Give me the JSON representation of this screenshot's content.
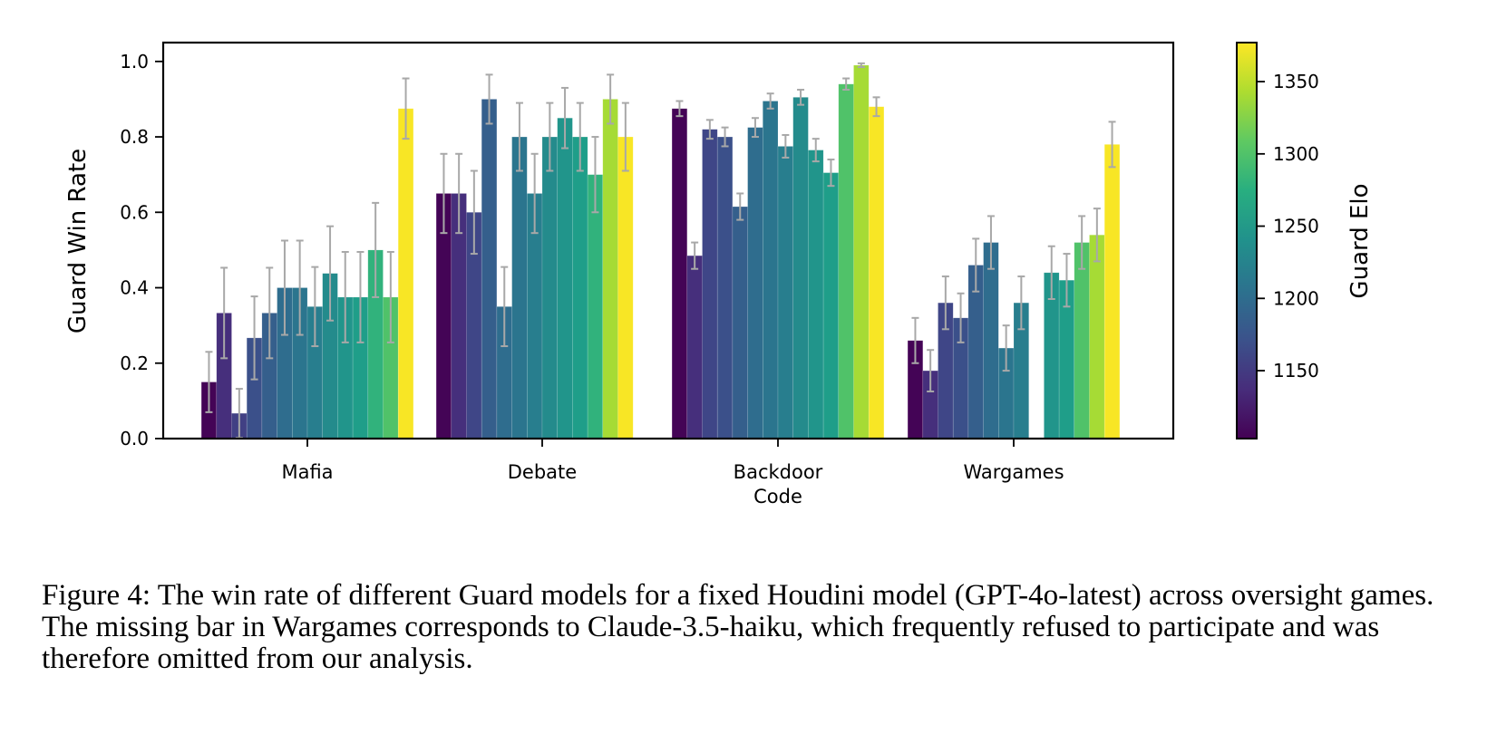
{
  "chart_data": {
    "type": "bar",
    "categories": [
      "Mafia",
      "Debate",
      "Backdoor\nCode",
      "Wargames"
    ],
    "ylabel": "Guard Win Rate",
    "ylim": [
      0.0,
      1.05
    ],
    "yticks": [
      0.0,
      0.2,
      0.4,
      0.6,
      0.8,
      1.0
    ],
    "ytick_labels": [
      "0.0",
      "0.2",
      "0.4",
      "0.6",
      "0.8",
      "1.0"
    ],
    "guard_elo": [
      1105,
      1140,
      1155,
      1170,
      1185,
      1200,
      1210,
      1220,
      1235,
      1245,
      1255,
      1265,
      1280,
      1300,
      1340,
      1375
    ],
    "series_by_category": [
      {
        "values": [
          0.15,
          0.333,
          0.067,
          0.267,
          0.333,
          0.4,
          0.4,
          0.35,
          0.438,
          0.375,
          0.375,
          0.5,
          0.375,
          0.875
        ],
        "err": [
          0.08,
          0.12,
          0.065,
          0.11,
          0.12,
          0.125,
          0.125,
          0.105,
          0.125,
          0.12,
          0.12,
          0.125,
          0.12,
          0.08
        ],
        "elo": [
          1105,
          1140,
          1155,
          1170,
          1185,
          1200,
          1210,
          1220,
          1235,
          1245,
          1255,
          1280,
          1300,
          1375
        ]
      },
      {
        "values": [
          0.65,
          0.65,
          0.6,
          0.9,
          0.35,
          0.8,
          0.65,
          0.8,
          0.85,
          0.8,
          0.7,
          0.9,
          0.8
        ],
        "err": [
          0.105,
          0.105,
          0.11,
          0.065,
          0.105,
          0.09,
          0.105,
          0.09,
          0.08,
          0.09,
          0.1,
          0.065,
          0.09
        ],
        "elo": [
          1105,
          1140,
          1160,
          1185,
          1200,
          1210,
          1220,
          1235,
          1245,
          1255,
          1280,
          1340,
          1375
        ]
      },
      {
        "values": [
          0.875,
          0.485,
          0.82,
          0.8,
          0.615,
          0.825,
          0.895,
          0.775,
          0.905,
          0.765,
          0.705,
          0.94,
          0.99,
          0.88
        ],
        "err": [
          0.02,
          0.035,
          0.025,
          0.025,
          0.035,
          0.025,
          0.02,
          0.03,
          0.02,
          0.03,
          0.035,
          0.015,
          0.005,
          0.025
        ],
        "elo": [
          1105,
          1140,
          1160,
          1170,
          1185,
          1200,
          1210,
          1220,
          1235,
          1245,
          1255,
          1300,
          1340,
          1375
        ]
      },
      {
        "values": [
          0.26,
          0.18,
          0.36,
          0.32,
          0.46,
          0.52,
          0.24,
          0.36,
          null,
          0.44,
          0.42,
          0.52,
          0.54,
          0.78
        ],
        "err": [
          0.06,
          0.055,
          0.07,
          0.065,
          0.07,
          0.07,
          0.06,
          0.07,
          null,
          0.07,
          0.07,
          0.07,
          0.07,
          0.06
        ],
        "elo": [
          1105,
          1140,
          1160,
          1170,
          1185,
          1200,
          1210,
          1220,
          1235,
          1245,
          1255,
          1300,
          1340,
          1375
        ]
      }
    ],
    "colorbar": {
      "label": "Guard Elo",
      "range": [
        1103,
        1377
      ],
      "ticks": [
        1150,
        1200,
        1250,
        1300,
        1350
      ],
      "tick_labels": [
        "1150",
        "1200",
        "1250",
        "1300",
        "1350"
      ],
      "colormap": "viridis"
    },
    "error_bar_color": "#a8a8a8"
  },
  "caption": "Figure 4: The win rate of different Guard models for a fixed Houdini model (GPT-4o-latest) across oversight games. The missing bar in Wargames corresponds to Claude-3.5-haiku, which frequently refused to participate and was therefore omitted from our analysis."
}
